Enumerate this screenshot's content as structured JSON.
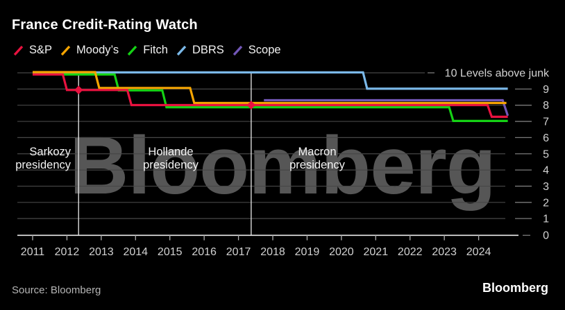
{
  "title": "France Credit-Rating Watch",
  "watermark": "Bloomberg",
  "source": "Source: Bloomberg",
  "logo": "Bloomberg",
  "legend": [
    {
      "label": "S&P",
      "color": "#e8123f"
    },
    {
      "label": "Moody’s",
      "color": "#f5a400"
    },
    {
      "label": "Fitch",
      "color": "#15d215"
    },
    {
      "label": "DBRS",
      "color": "#7ab8e8"
    },
    {
      "label": "Scope",
      "color": "#7257b8"
    }
  ],
  "colors": {
    "background": "#000000",
    "grid": "#474747",
    "grid_dash": "#7a7a7a",
    "axis": "#ececec",
    "tick": "#b0b0b0",
    "tick_label": "#d2d2d2",
    "divider": "#dcdcdc",
    "annotation_text": "#f5f5f5",
    "marker": "#e8123f",
    "watermark": "#565656"
  },
  "chart_data": {
    "type": "line",
    "title": "France Credit-Rating Watch",
    "xlabel": "",
    "ylabel": "Levels above junk",
    "x_ticks": [
      2011,
      2012,
      2013,
      2014,
      2015,
      2016,
      2017,
      2018,
      2019,
      2020,
      2021,
      2022,
      2023,
      2024
    ],
    "x_range": [
      2011,
      2024.85
    ],
    "ylim": [
      0,
      10
    ],
    "y_levels": [
      0,
      1,
      2,
      3,
      4,
      5,
      6,
      7,
      8,
      9,
      10
    ],
    "y_top_label": "10 Levels above junk",
    "grid": true,
    "legend_position": "top",
    "series": [
      {
        "name": "DBRS",
        "color": "#7ab8e8",
        "points": [
          [
            2011.0,
            10
          ],
          [
            2020.63,
            10
          ],
          [
            2020.75,
            9
          ],
          [
            2024.85,
            9
          ]
        ]
      },
      {
        "name": "Fitch",
        "color": "#15d215",
        "points": [
          [
            2011.0,
            10
          ],
          [
            2013.39,
            10
          ],
          [
            2013.51,
            9
          ],
          [
            2014.78,
            9
          ],
          [
            2014.9,
            8
          ],
          [
            2023.14,
            8
          ],
          [
            2023.26,
            7
          ],
          [
            2024.85,
            7
          ]
        ]
      },
      {
        "name": "Scope",
        "color": "#7257b8",
        "points": [
          [
            2017.74,
            8
          ],
          [
            2024.7,
            8
          ],
          [
            2024.85,
            7
          ]
        ]
      },
      {
        "name": "Moody’s",
        "color": "#f5a400",
        "points": [
          [
            2011.0,
            10
          ],
          [
            2012.82,
            10
          ],
          [
            2012.94,
            9
          ],
          [
            2015.59,
            9
          ],
          [
            2015.71,
            8
          ],
          [
            2024.81,
            8
          ]
        ]
      },
      {
        "name": "S&P",
        "color": "#e8123f",
        "points": [
          [
            2011.0,
            10
          ],
          [
            2011.88,
            10
          ],
          [
            2012.0,
            9
          ],
          [
            2013.76,
            9
          ],
          [
            2013.88,
            8
          ],
          [
            2024.26,
            8
          ],
          [
            2024.38,
            7
          ],
          [
            2024.85,
            7
          ]
        ]
      }
    ],
    "markers": [
      {
        "series": "S&P",
        "year": 2012.34,
        "level": 9
      },
      {
        "series": "S&P",
        "year": 2017.37,
        "level": 8
      }
    ],
    "presidency_annotations": {
      "divider_years": [
        2012.34,
        2017.37
      ],
      "labels": [
        {
          "line1": "Sarkozy",
          "line2": "presidency"
        },
        {
          "line1": "Hollande",
          "line2": "presidency"
        },
        {
          "line1": "Macron",
          "line2": "presidency"
        }
      ]
    }
  }
}
